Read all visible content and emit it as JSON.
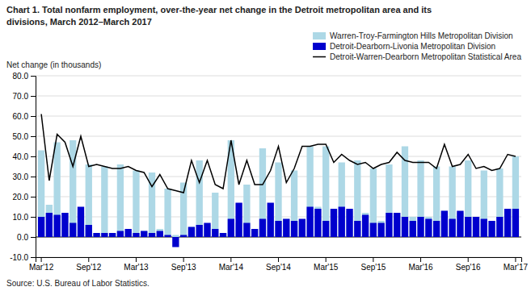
{
  "chart_data": {
    "type": "bar",
    "title": [
      "Chart 1. Total nonfarm employment, over-the-year net change in the Detroit metropolitan area and its",
      "divisions,  March 2012–March 2017"
    ],
    "ylabel": "Net change (in thousands)",
    "annotations": [
      "Source: U.S. Bureau of Labor Statistics."
    ],
    "categories": [
      "Mar'12",
      null,
      null,
      null,
      null,
      null,
      "Sep'12",
      null,
      null,
      null,
      null,
      null,
      "Mar'13",
      null,
      null,
      null,
      null,
      null,
      "Sep'13",
      null,
      null,
      null,
      null,
      null,
      "Mar'14",
      null,
      null,
      null,
      null,
      null,
      "Sep'14",
      null,
      null,
      null,
      null,
      null,
      "Mar'15",
      null,
      null,
      null,
      null,
      null,
      "Sep'15",
      null,
      null,
      null,
      null,
      null,
      "Mar'16",
      null,
      null,
      null,
      null,
      null,
      "Sep'16",
      null,
      null,
      null,
      null,
      null,
      "Mar'17"
    ],
    "series": [
      {
        "name": "Warren-Troy-Farmington Hills Metropolitan Division",
        "type": "bar",
        "color": "#add8e6",
        "values": [
          43,
          16,
          47,
          12,
          48,
          12,
          36,
          2,
          35,
          2,
          36,
          3,
          33,
          3,
          32,
          4,
          24,
          1,
          27,
          5,
          38,
          6,
          22,
          2,
          48,
          7,
          26,
          4,
          44,
          10,
          37,
          9,
          33,
          8,
          45,
          15,
          45,
          14,
          37,
          13,
          38,
          12,
          34,
          8,
          36,
          10,
          45,
          10,
          38,
          10,
          35,
          13,
          35,
          12,
          38,
          10,
          33,
          8,
          34,
          14,
          40
        ]
      },
      {
        "name": "Detroit-Dearborn-Livonia Metropolitan Division",
        "type": "bar",
        "color": "#0000cd",
        "values": [
          10,
          12,
          11,
          12,
          7,
          15,
          6,
          2,
          2,
          2,
          3,
          4,
          2,
          3,
          2,
          3,
          1,
          -5,
          1,
          5,
          6,
          7,
          4,
          2,
          9,
          17,
          7,
          4,
          9,
          17,
          8,
          9,
          8,
          9,
          15,
          14,
          8,
          14,
          15,
          14,
          8,
          11,
          7,
          7,
          12,
          12,
          10,
          8,
          10,
          9,
          8,
          13,
          9,
          13,
          10,
          10,
          9,
          8,
          10,
          14,
          14
        ]
      },
      {
        "name": "Detroit-Warren-Dearborn Metropolitan Statistical Area",
        "type": "line",
        "color": "#000000",
        "values": [
          61,
          28,
          51,
          47,
          35,
          50,
          35,
          36,
          35,
          34,
          34,
          35,
          33,
          32,
          25,
          31,
          24,
          23,
          22,
          38,
          27,
          38,
          26,
          24,
          48,
          26,
          38,
          26,
          26,
          33,
          45,
          27,
          34,
          45,
          45,
          46,
          46,
          37,
          41,
          38,
          36,
          37,
          34,
          36,
          37,
          42,
          38,
          37,
          37,
          37,
          34,
          46,
          35,
          36,
          41,
          34,
          35,
          33,
          34,
          41,
          40
        ]
      }
    ],
    "stacked": false,
    "ylim": [
      -10,
      80
    ],
    "yticks": [
      {
        "value": -10,
        "label": "-10.0"
      },
      {
        "value": 0,
        "label": "0.0"
      },
      {
        "value": 10,
        "label": "10.0"
      },
      {
        "value": 20,
        "label": "20.0"
      },
      {
        "value": 30,
        "label": "30.0"
      },
      {
        "value": 40,
        "label": "40.0"
      },
      {
        "value": 50,
        "label": "50.0"
      },
      {
        "value": 60,
        "label": "60.0"
      },
      {
        "value": 70,
        "label": "70.0"
      },
      {
        "value": 80,
        "label": "80.0"
      }
    ],
    "grid": true,
    "legend": "top-right"
  }
}
